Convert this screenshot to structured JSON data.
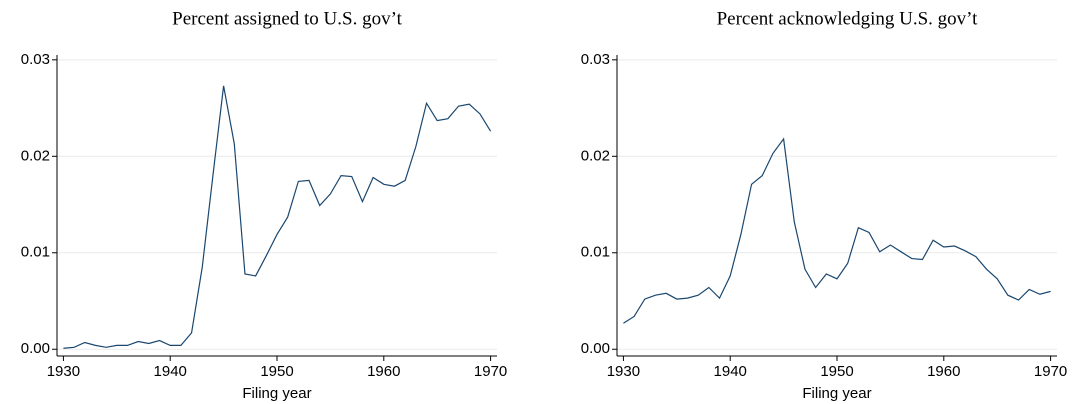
{
  "chart_data": [
    {
      "type": "line",
      "title": "Percent assigned to U.S. gov’t",
      "x_label": "Filing year",
      "x": [
        1930,
        1931,
        1932,
        1933,
        1934,
        1935,
        1936,
        1937,
        1938,
        1939,
        1940,
        1941,
        1942,
        1943,
        1944,
        1945,
        1946,
        1947,
        1948,
        1949,
        1950,
        1951,
        1952,
        1953,
        1954,
        1955,
        1956,
        1957,
        1958,
        1959,
        1960,
        1961,
        1962,
        1963,
        1964,
        1965,
        1966,
        1967,
        1968,
        1969,
        1970
      ],
      "series": [
        {
          "color": "#1a476f",
          "values": [
            0.0001,
            0.0002,
            0.0007,
            0.0004,
            0.0002,
            0.0004,
            0.0004,
            0.0008,
            0.0006,
            0.0009,
            0.0004,
            0.0004,
            0.0017,
            0.0085,
            0.018,
            0.0273,
            0.0213,
            0.0078,
            0.0076,
            0.0097,
            0.0119,
            0.0137,
            0.0174,
            0.0175,
            0.0149,
            0.0161,
            0.018,
            0.0179,
            0.0153,
            0.0178,
            0.0171,
            0.0169,
            0.0175,
            0.021,
            0.0255,
            0.0237,
            0.0239,
            0.0252,
            0.0254,
            0.0244,
            0.0226
          ]
        }
      ],
      "xlim": [
        1929.4,
        1970.6
      ],
      "xticks": [
        1930,
        1940,
        1950,
        1960,
        1970
      ],
      "ylim": [
        -0.0007,
        0.0305
      ],
      "yticks": [
        {
          "value": 0,
          "label": "0.00"
        },
        0.01,
        0.02,
        0.03
      ],
      "grid": true
    },
    {
      "type": "line",
      "title": "Percent acknowledging U.S. gov’t",
      "x_label": "Filing year",
      "x": [
        1930,
        1931,
        1932,
        1933,
        1934,
        1935,
        1936,
        1937,
        1938,
        1939,
        1940,
        1941,
        1942,
        1943,
        1944,
        1945,
        1946,
        1947,
        1948,
        1949,
        1950,
        1951,
        1952,
        1953,
        1954,
        1955,
        1956,
        1957,
        1958,
        1959,
        1960,
        1961,
        1962,
        1963,
        1964,
        1965,
        1966,
        1967,
        1968,
        1969,
        1970
      ],
      "series": [
        {
          "color": "#1a476f",
          "values": [
            0.0027,
            0.0034,
            0.0052,
            0.0056,
            0.0058,
            0.0052,
            0.0053,
            0.0056,
            0.0064,
            0.0053,
            0.0076,
            0.0119,
            0.0171,
            0.018,
            0.0203,
            0.0218,
            0.0132,
            0.0083,
            0.0064,
            0.0078,
            0.0073,
            0.0089,
            0.0126,
            0.0121,
            0.0101,
            0.0108,
            0.0101,
            0.0094,
            0.0093,
            0.0113,
            0.0106,
            0.0107,
            0.0102,
            0.0096,
            0.0083,
            0.0073,
            0.0056,
            0.0051,
            0.0062,
            0.0057,
            0.006
          ]
        }
      ],
      "xlim": [
        1929.4,
        1970.6
      ],
      "xticks": [
        1930,
        1940,
        1950,
        1960,
        1970
      ],
      "ylim": [
        -0.0007,
        0.0305
      ],
      "yticks": [
        {
          "value": 0,
          "label": "0.00"
        },
        0.01,
        0.02,
        0.03
      ],
      "grid": true
    }
  ]
}
